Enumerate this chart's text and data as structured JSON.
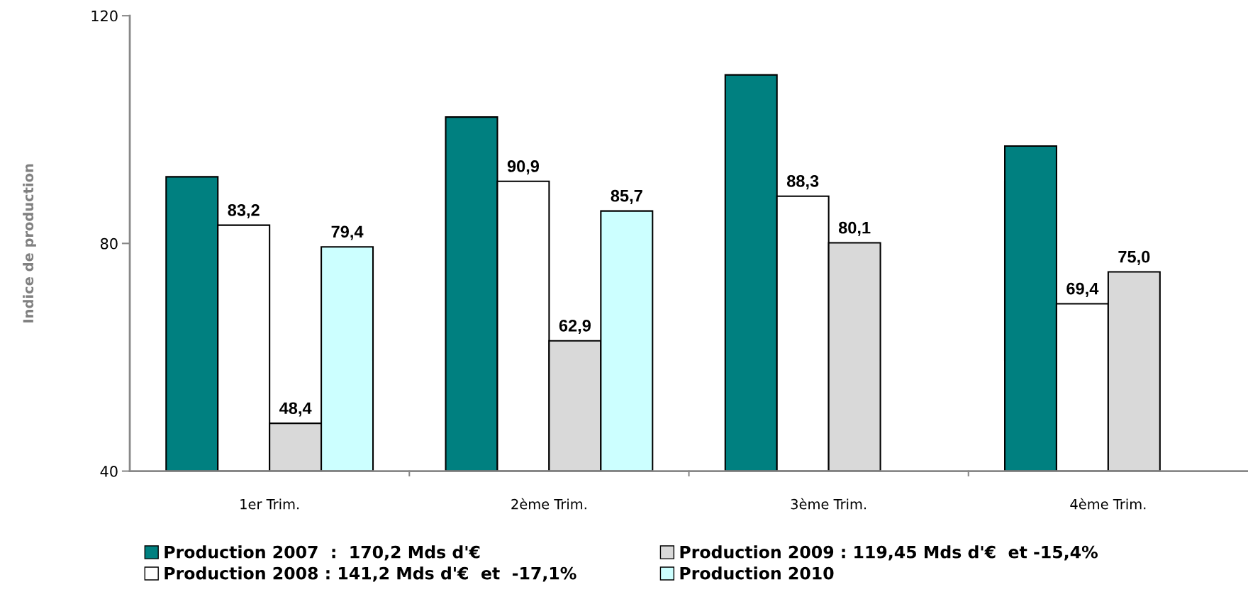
{
  "chart_data": {
    "type": "bar",
    "ylabel": "Indice de production",
    "categories": [
      "1er Trim.",
      "2ème Trim.",
      "3ème Trim.",
      "4ème Trim."
    ],
    "series": [
      {
        "name": "Production 2007  :  170,2 Mds d'€",
        "color": "#008080",
        "values": [
          91.7,
          102.2,
          109.6,
          97.1
        ]
      },
      {
        "name": "Production 2008 : 141,2 Mds d'€  et  -17,1%",
        "color": "#ffffff",
        "values": [
          83.2,
          90.9,
          88.3,
          69.4
        ],
        "value_labels": [
          "83,2",
          "90,9",
          "88,3",
          "69,4"
        ]
      },
      {
        "name": "Production 2009 : 119,45 Mds d'€  et -15,4%",
        "color": "#d9d9d9",
        "values": [
          48.4,
          62.9,
          80.1,
          75.0
        ],
        "value_labels": [
          "48,4",
          "62,9",
          "80,1",
          "75,0"
        ]
      },
      {
        "name": "Production 2010",
        "color": "#ccffff",
        "values": [
          79.4,
          85.7,
          null,
          null
        ],
        "value_labels": [
          "79,4",
          "85,7",
          null,
          null
        ]
      }
    ],
    "ylim": [
      40,
      120
    ],
    "yticks": [
      40,
      80,
      120
    ],
    "grid": false,
    "legend": "bottom"
  }
}
